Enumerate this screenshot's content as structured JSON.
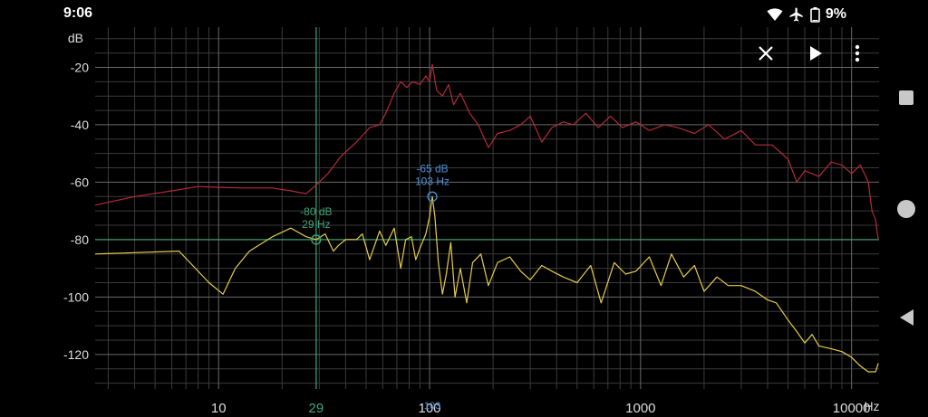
{
  "status_bar": {
    "time": "9:06",
    "battery_percent": "9%",
    "icons": [
      "wifi-icon",
      "airplane-mode-icon",
      "battery-icon"
    ]
  },
  "toolbar": {
    "close_icon": "close-icon",
    "play_icon": "play-icon",
    "menu_icon": "more-vert-icon"
  },
  "navigation_bar": {
    "icons": [
      "recents-square-icon",
      "home-circle-icon",
      "back-triangle-icon"
    ]
  },
  "chart_data": {
    "type": "line",
    "ylabel": "dB",
    "xunit": "Hz",
    "x_scale": "log",
    "xlim": [
      2.6,
      13500
    ],
    "ylim": [
      -132,
      -6
    ],
    "grid": true,
    "y_ticks": [
      -20,
      -40,
      -60,
      -80,
      -100,
      -120
    ],
    "x_tick_labels": [
      {
        "value": 10,
        "label": "10"
      },
      {
        "value": 100,
        "label": "100"
      },
      {
        "value": 1000,
        "label": "1000"
      },
      {
        "value": 10000,
        "label": "10000"
      }
    ],
    "colors": {
      "red_series": "#b32a3a",
      "yellow_series": "#e6cc4a",
      "green_cursor": "#3fa77a",
      "blue_cursor": "#4d8fd6",
      "grid": "#3a3a3a",
      "grid_major": "#6a6a6a"
    },
    "cursors": [
      {
        "x": 29,
        "y": -80,
        "db_label": "-80 dB",
        "hz_label": "29 Hz",
        "axis_label": "29",
        "color": "green"
      },
      {
        "x": 103,
        "y": -65,
        "db_label": "-65 dB",
        "hz_label": "103 Hz",
        "axis_label": "103",
        "color": "blue"
      }
    ],
    "series": [
      {
        "points": [
          [
            2.6,
            -68
          ],
          [
            4,
            -65
          ],
          [
            6,
            -63
          ],
          [
            8,
            -61.5
          ],
          [
            10,
            -61.8
          ],
          [
            13,
            -62
          ],
          [
            18,
            -62
          ],
          [
            22,
            -63
          ],
          [
            26,
            -64
          ],
          [
            29,
            -61
          ],
          [
            33,
            -57
          ],
          [
            38,
            -51
          ],
          [
            45,
            -46
          ],
          [
            52,
            -41
          ],
          [
            58,
            -40
          ],
          [
            62,
            -36
          ],
          [
            68,
            -29
          ],
          [
            73,
            -25
          ],
          [
            78,
            -27
          ],
          [
            83,
            -25
          ],
          [
            90,
            -26
          ],
          [
            96,
            -23
          ],
          [
            100,
            -25
          ],
          [
            103,
            -19
          ],
          [
            108,
            -28
          ],
          [
            115,
            -30
          ],
          [
            123,
            -26
          ],
          [
            130,
            -33
          ],
          [
            140,
            -29
          ],
          [
            155,
            -36
          ],
          [
            170,
            -40
          ],
          [
            190,
            -48
          ],
          [
            210,
            -43
          ],
          [
            240,
            -42
          ],
          [
            270,
            -40
          ],
          [
            300,
            -37
          ],
          [
            340,
            -46
          ],
          [
            380,
            -41
          ],
          [
            430,
            -39
          ],
          [
            480,
            -40
          ],
          [
            550,
            -36
          ],
          [
            630,
            -41
          ],
          [
            720,
            -37
          ],
          [
            820,
            -41
          ],
          [
            950,
            -39
          ],
          [
            1100,
            -42
          ],
          [
            1300,
            -40
          ],
          [
            1500,
            -41
          ],
          [
            1800,
            -43
          ],
          [
            2100,
            -40
          ],
          [
            2500,
            -45
          ],
          [
            3000,
            -42
          ],
          [
            3500,
            -47
          ],
          [
            4200,
            -47
          ],
          [
            5000,
            -52
          ],
          [
            5500,
            -60
          ],
          [
            6000,
            -56
          ],
          [
            7000,
            -58
          ],
          [
            8000,
            -53
          ],
          [
            9000,
            -54
          ],
          [
            10000,
            -57
          ],
          [
            11000,
            -54
          ],
          [
            12000,
            -60
          ],
          [
            12500,
            -70
          ],
          [
            13000,
            -73
          ],
          [
            13200,
            -77
          ],
          [
            13400,
            -80
          ]
        ]
      },
      {
        "points": [
          [
            2.6,
            -85
          ],
          [
            6.5,
            -84
          ],
          [
            9,
            -95
          ],
          [
            10.5,
            -99
          ],
          [
            12,
            -90
          ],
          [
            14,
            -84
          ],
          [
            18,
            -79
          ],
          [
            22,
            -76
          ],
          [
            26,
            -79
          ],
          [
            29,
            -80
          ],
          [
            32,
            -78
          ],
          [
            35,
            -84
          ],
          [
            37,
            -82
          ],
          [
            40,
            -80
          ],
          [
            45,
            -80
          ],
          [
            48,
            -78
          ],
          [
            52,
            -87
          ],
          [
            58,
            -77
          ],
          [
            62,
            -82
          ],
          [
            68,
            -76
          ],
          [
            73,
            -90
          ],
          [
            77,
            -80
          ],
          [
            82,
            -79
          ],
          [
            86,
            -87
          ],
          [
            90,
            -83
          ],
          [
            96,
            -78
          ],
          [
            100,
            -72
          ],
          [
            103,
            -65
          ],
          [
            106,
            -72
          ],
          [
            110,
            -88
          ],
          [
            115,
            -99
          ],
          [
            120,
            -92
          ],
          [
            126,
            -81
          ],
          [
            132,
            -100
          ],
          [
            140,
            -90
          ],
          [
            150,
            -102
          ],
          [
            160,
            -88
          ],
          [
            175,
            -85
          ],
          [
            190,
            -96
          ],
          [
            210,
            -88
          ],
          [
            240,
            -86
          ],
          [
            270,
            -91
          ],
          [
            300,
            -94
          ],
          [
            340,
            -89
          ],
          [
            380,
            -91
          ],
          [
            430,
            -93
          ],
          [
            500,
            -95
          ],
          [
            580,
            -89
          ],
          [
            650,
            -102
          ],
          [
            750,
            -88
          ],
          [
            850,
            -92
          ],
          [
            950,
            -91
          ],
          [
            1100,
            -86
          ],
          [
            1250,
            -96
          ],
          [
            1400,
            -85
          ],
          [
            1600,
            -93
          ],
          [
            1800,
            -89
          ],
          [
            2000,
            -98
          ],
          [
            2300,
            -93
          ],
          [
            2600,
            -96
          ],
          [
            3000,
            -96
          ],
          [
            3500,
            -98
          ],
          [
            4000,
            -101
          ],
          [
            4400,
            -102
          ],
          [
            5000,
            -108
          ],
          [
            5500,
            -112
          ],
          [
            6000,
            -116
          ],
          [
            6500,
            -113
          ],
          [
            7000,
            -117
          ],
          [
            8000,
            -118
          ],
          [
            9000,
            -119
          ],
          [
            10000,
            -121
          ],
          [
            11000,
            -124
          ],
          [
            12000,
            -126
          ],
          [
            13000,
            -126
          ],
          [
            13400,
            -123
          ]
        ]
      }
    ]
  }
}
